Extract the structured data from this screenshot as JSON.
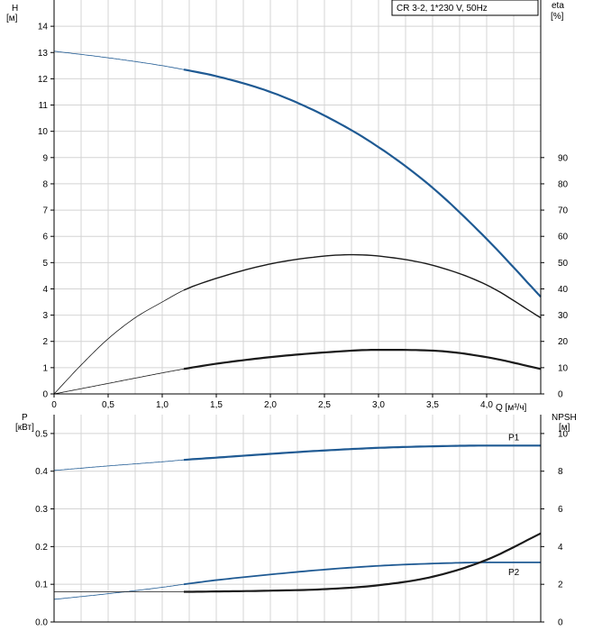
{
  "colors": {
    "blue": "#1f5a93",
    "black": "#1a1a1a",
    "grid": "#d4d4d4"
  },
  "chart_data": [
    {
      "type": "line",
      "title": "CR 3-2, 1*230 V, 50Hz",
      "xlabel": "Q [м³/ч]",
      "x_ticks": [
        "0",
        "0,5",
        "1,0",
        "1,5",
        "2,0",
        "2,5",
        "3,0",
        "3,5",
        "4,0"
      ],
      "xlim": [
        0,
        4.5
      ],
      "ylabel_left_lines": [
        "H",
        "[м]"
      ],
      "y_ticks_left": [
        "0",
        "1",
        "2",
        "3",
        "4",
        "5",
        "6",
        "7",
        "8",
        "9",
        "10",
        "11",
        "12",
        "13",
        "14"
      ],
      "ylim_left": [
        0,
        15
      ],
      "ylabel_right_lines": [
        "eta",
        "[%]"
      ],
      "y_ticks_right": [
        "0",
        "10",
        "20",
        "30",
        "40",
        "50",
        "60",
        "70",
        "80",
        "90"
      ],
      "ylim_right": [
        0,
        150
      ],
      "grid": true,
      "operating_range_start": 1.2,
      "series": [
        {
          "axis": "left",
          "color": "blue",
          "width": 2.2,
          "x": [
            0,
            0.5,
            1.0,
            1.2,
            1.5,
            2.0,
            2.5,
            3.0,
            3.5,
            4.0,
            4.5
          ],
          "y": [
            13.05,
            12.8,
            12.5,
            12.35,
            12.1,
            11.5,
            10.6,
            9.4,
            7.85,
            5.9,
            3.7
          ]
        },
        {
          "axis": "right",
          "color": "black",
          "width": 1.4,
          "x": [
            0,
            0.25,
            0.5,
            0.75,
            1.0,
            1.2,
            1.5,
            2.0,
            2.5,
            2.75,
            3.0,
            3.5,
            4.0,
            4.5
          ],
          "y": [
            0,
            11,
            21,
            29,
            35,
            39.5,
            44,
            49.5,
            52.5,
            53,
            52.5,
            49,
            41.5,
            29
          ]
        },
        {
          "axis": "right",
          "color": "black",
          "width": 2.2,
          "x": [
            0,
            0.5,
            1.0,
            1.2,
            1.5,
            2.0,
            2.5,
            3.0,
            3.5,
            4.0,
            4.5
          ],
          "y": [
            0,
            4,
            8,
            9.5,
            11.5,
            14,
            15.8,
            16.8,
            16.5,
            14,
            9.5
          ]
        }
      ]
    },
    {
      "type": "line",
      "xlim": [
        0,
        4.5
      ],
      "ylabel_left_lines": [
        "P",
        "[кВт]"
      ],
      "y_ticks_left": [
        "0.0",
        "0.1",
        "0.2",
        "0.3",
        "0.4",
        "0.5"
      ],
      "ylim_left": [
        0,
        0.55
      ],
      "ylabel_right_lines": [
        "NPSH",
        "[м]"
      ],
      "y_ticks_right": [
        "0",
        "2",
        "4",
        "6",
        "8",
        "10"
      ],
      "ylim_right": [
        0,
        11
      ],
      "grid": true,
      "operating_range_start": 1.2,
      "series": [
        {
          "name": "P1",
          "axis": "left",
          "color": "blue",
          "width": 2.2,
          "x": [
            0,
            0.5,
            1.0,
            1.2,
            1.5,
            2.0,
            2.5,
            3.0,
            3.5,
            4.0,
            4.5
          ],
          "y": [
            0.402,
            0.414,
            0.425,
            0.43,
            0.436,
            0.446,
            0.455,
            0.462,
            0.466,
            0.468,
            0.468
          ]
        },
        {
          "name": "P2",
          "axis": "left",
          "color": "blue",
          "width": 1.8,
          "x": [
            0,
            0.5,
            1.0,
            1.2,
            1.5,
            2.0,
            2.5,
            3.0,
            3.5,
            4.0,
            4.5
          ],
          "y": [
            0.06,
            0.075,
            0.092,
            0.1,
            0.111,
            0.126,
            0.139,
            0.149,
            0.155,
            0.158,
            0.158
          ]
        },
        {
          "axis": "right",
          "color": "black",
          "width": 2.2,
          "x": [
            0,
            0.5,
            1.0,
            1.2,
            1.5,
            2.0,
            2.5,
            3.0,
            3.5,
            4.0,
            4.5
          ],
          "y": [
            1.6,
            1.6,
            1.6,
            1.6,
            1.62,
            1.66,
            1.74,
            1.95,
            2.4,
            3.3,
            4.7
          ]
        }
      ]
    }
  ]
}
